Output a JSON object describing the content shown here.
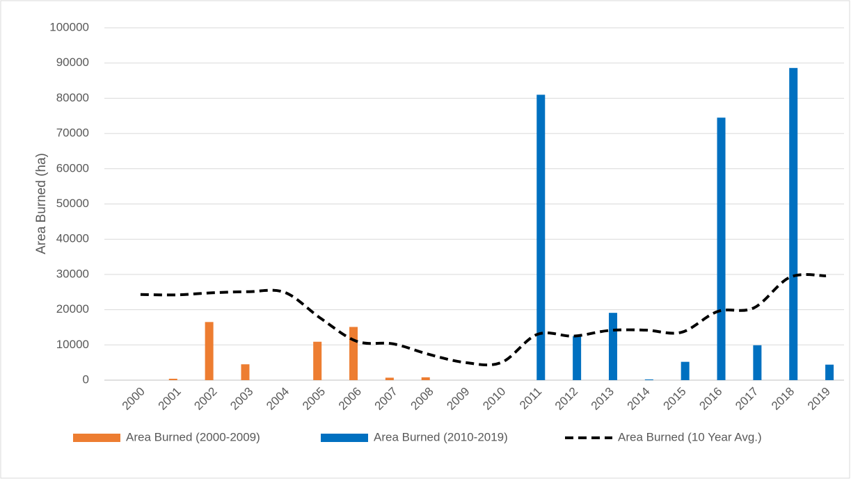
{
  "chart_data": {
    "type": "bar_line",
    "y_axis_label": "Area Burned (ha)",
    "categories": [
      "2000",
      "2001",
      "2002",
      "2003",
      "2004",
      "2005",
      "2006",
      "2007",
      "2008",
      "2009",
      "2010",
      "2011",
      "2012",
      "2013",
      "2014",
      "2015",
      "2016",
      "2017",
      "2018",
      "2019"
    ],
    "series": [
      {
        "name": "Area Burned (2000-2009)",
        "type": "bar",
        "color": "#ed7d31",
        "values": [
          0,
          400,
          16500,
          4500,
          0,
          10900,
          15100,
          700,
          800,
          0,
          null,
          null,
          null,
          null,
          null,
          null,
          null,
          null,
          null,
          null
        ]
      },
      {
        "name": "Area Burned (2010-2019)",
        "type": "bar",
        "color": "#0070c0",
        "values": [
          null,
          null,
          null,
          null,
          null,
          null,
          null,
          null,
          null,
          null,
          0,
          81000,
          12500,
          19100,
          200,
          5200,
          74500,
          9900,
          88600,
          4400
        ]
      },
      {
        "name": "Area Burned (10 Year Avg.)",
        "type": "line",
        "color": "#000000",
        "dashed": true,
        "values": [
          24300,
          24200,
          24800,
          25100,
          24900,
          17500,
          11000,
          10300,
          7300,
          5000,
          5000,
          13000,
          12500,
          14100,
          14200,
          13600,
          19500,
          20500,
          29200,
          29600
        ]
      }
    ],
    "ylim": [
      0,
      100000
    ],
    "yticks": [
      0,
      10000,
      20000,
      30000,
      40000,
      50000,
      60000,
      70000,
      80000,
      90000,
      100000
    ],
    "grid": true,
    "legend": "bottom"
  }
}
